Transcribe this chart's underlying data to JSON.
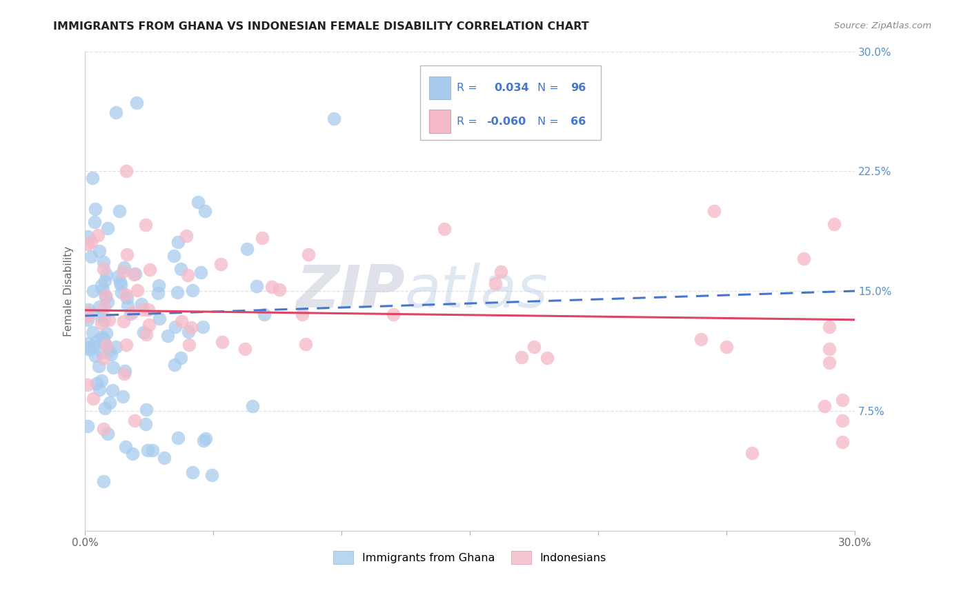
{
  "title": "IMMIGRANTS FROM GHANA VS INDONESIAN FEMALE DISABILITY CORRELATION CHART",
  "source": "Source: ZipAtlas.com",
  "ylabel": "Female Disability",
  "xlim": [
    0.0,
    0.3
  ],
  "ylim": [
    0.0,
    0.3
  ],
  "ghana_R": 0.034,
  "ghana_N": 96,
  "indonesian_R": -0.06,
  "indonesian_N": 66,
  "ghana_color": "#a8ccee",
  "indonesian_color": "#f5b8c8",
  "ghana_line_color": "#4477cc",
  "indonesian_line_color": "#dd4466",
  "ghana_trend_x": [
    0.0,
    0.3
  ],
  "ghana_trend_y": [
    0.1345,
    0.15
  ],
  "indonesian_trend_x": [
    0.0,
    0.3
  ],
  "indonesian_trend_y": [
    0.138,
    0.132
  ],
  "watermark_zip": "ZIP",
  "watermark_atlas": "atlas",
  "watermark_color": "#c8d4e8",
  "background_color": "#ffffff",
  "grid_color": "#dddddd",
  "right_tick_color": "#5590cc",
  "legend_text_color": "#4477cc",
  "legend_r_color_ghana": "#4477cc",
  "legend_r_color_indo": "#dd4466",
  "bottom_legend_items": [
    "Immigrants from Ghana",
    "Indonesians"
  ]
}
